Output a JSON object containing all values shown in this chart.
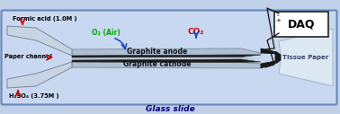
{
  "bg_color": "#c0d0e8",
  "body_fill": "#c8d8f0",
  "body_border": "#6688bb",
  "glass_slide_label": "Glass slide",
  "glass_slide_label_color": "#000080",
  "channel_fill": "#c8d4e4",
  "channel_border": "#7a8a9a",
  "graphite_color": "#1a1a1a",
  "graphite_mid_color": "#2a2a2a",
  "electrode_label_anode": "Graphite anode",
  "electrode_label_cathode": "Graphite cathode",
  "formic_acid_label": "Formic acid (1.0M )",
  "h2so4_label": "H₂SO₄ (3.75M )",
  "paper_channel_label": "Paper channel",
  "o2_label": "O₂ (Air)",
  "co2_label": "CO₂",
  "daq_label": "DAQ",
  "tissue_label": "Tissue Paper",
  "red_arrow_color": "#cc0000",
  "green_text_color": "#00aa00",
  "red_text_color": "#cc0000",
  "blue_arrow_color": "#1144cc",
  "black_color": "#111111",
  "tissue_color": "#dde8f5",
  "tissue_border": "#aabbcc",
  "daq_border": "#222222",
  "daq_bg": "#ffffff",
  "upper_glass": "#b0c0d4",
  "lower_glass": "#b0c0d4",
  "wire_color": "#111111"
}
